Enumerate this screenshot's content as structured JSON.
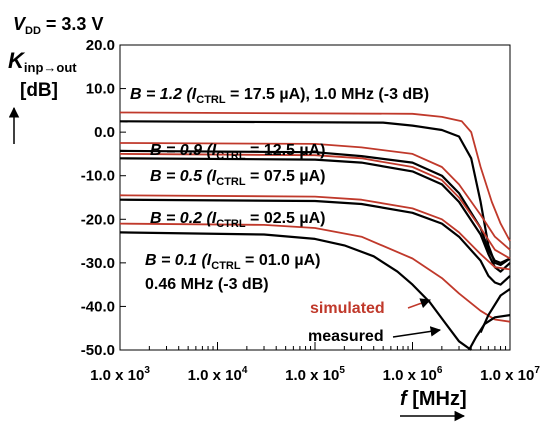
{
  "chart_data": {
    "type": "line",
    "title": "",
    "supply_label": {
      "sym": "V",
      "sub": "DD",
      "rest": " = 3.3 V"
    },
    "ylabel": {
      "sym": "K",
      "sub": "inp→out",
      "unit": "[dB]"
    },
    "xlabel": {
      "sym": "f",
      "unit": " [MHz]"
    },
    "x_scale": "log",
    "xlim": [
      1000,
      10000000
    ],
    "ylim": [
      -50,
      20
    ],
    "grid": false,
    "x_ticks": [
      {
        "value": 1000,
        "label": "1.0 x 10",
        "exp": "3"
      },
      {
        "value": 10000,
        "label": "1.0 x 10",
        "exp": "4"
      },
      {
        "value": 100000,
        "label": "1.0 x 10",
        "exp": "5"
      },
      {
        "value": 1000000,
        "label": "1.0 x 10",
        "exp": "6"
      },
      {
        "value": 10000000,
        "label": "1.0 x 10",
        "exp": "7"
      }
    ],
    "y_ticks": [
      {
        "value": 20,
        "label": "20.0"
      },
      {
        "value": 10,
        "label": "10.0"
      },
      {
        "value": 0,
        "label": "0.0"
      },
      {
        "value": -10,
        "label": "-10.0"
      },
      {
        "value": -20,
        "label": "-20.0"
      },
      {
        "value": -30,
        "label": "-30.0"
      },
      {
        "value": -40,
        "label": "-40.0"
      },
      {
        "value": -50,
        "label": "-50.0"
      }
    ],
    "series_colors": {
      "simulated": "#c0392b",
      "measured": "#000000"
    },
    "series": [
      {
        "kind": "simulated",
        "x": [
          1000,
          1000000,
          2000000,
          3200000,
          4000000,
          5000000,
          6500000,
          8000000,
          10000000
        ],
        "y": [
          4.5,
          4.2,
          3.5,
          2.5,
          0.0,
          -8.0,
          -16.0,
          -21.0,
          -25.0
        ]
      },
      {
        "kind": "measured",
        "x": [
          1000,
          500000,
          1000000,
          2000000,
          3000000,
          4000000,
          5000000,
          6000000,
          7000000,
          8000000,
          10000000
        ],
        "y": [
          2.5,
          2.2,
          1.5,
          0.5,
          -1.0,
          -6.0,
          -16.0,
          -26.0,
          -30.0,
          -30.5,
          -29.0
        ]
      },
      {
        "kind": "simulated",
        "x": [
          1000,
          100000,
          300000,
          1000000,
          2000000,
          3000000,
          5000000,
          7000000,
          10000000
        ],
        "y": [
          -2.5,
          -2.7,
          -3.5,
          -5.0,
          -8.0,
          -12.0,
          -19.0,
          -24.0,
          -27.0
        ]
      },
      {
        "kind": "measured",
        "x": [
          1000,
          100000,
          300000,
          1000000,
          2000000,
          3000000,
          5000000,
          6000000,
          7000000,
          8000000,
          10000000
        ],
        "y": [
          -4.3,
          -4.6,
          -5.5,
          -7.0,
          -10.0,
          -14.0,
          -22.0,
          -27.0,
          -29.5,
          -30.0,
          -29.0
        ]
      },
      {
        "kind": "simulated",
        "x": [
          1000,
          100000,
          300000,
          1000000,
          2000000,
          3000000,
          5000000,
          7000000,
          10000000
        ],
        "y": [
          -5.0,
          -5.3,
          -6.0,
          -8.0,
          -11.0,
          -15.0,
          -22.0,
          -27.0,
          -29.0
        ]
      },
      {
        "kind": "measured",
        "x": [
          1000,
          100000,
          300000,
          1000000,
          2000000,
          3000000,
          5000000,
          6000000,
          7000000,
          8000000,
          10000000
        ],
        "y": [
          -6.0,
          -6.3,
          -7.0,
          -9.0,
          -12.0,
          -16.0,
          -23.5,
          -28.0,
          -31.0,
          -32.0,
          -30.0
        ]
      },
      {
        "kind": "simulated",
        "x": [
          1000,
          100000,
          300000,
          1000000,
          2000000,
          3000000,
          5000000,
          7000000,
          10000000
        ],
        "y": [
          -14.5,
          -14.8,
          -15.5,
          -17.5,
          -20.0,
          -23.0,
          -28.0,
          -31.0,
          -31.5
        ]
      },
      {
        "kind": "measured",
        "x": [
          1000,
          100000,
          300000,
          1000000,
          2000000,
          3000000,
          5000000,
          6000000,
          7000000,
          8000000,
          10000000
        ],
        "y": [
          -15.5,
          -15.8,
          -16.5,
          -18.5,
          -21.0,
          -24.0,
          -29.5,
          -33.0,
          -34.5,
          -35.0,
          -33.0
        ]
      },
      {
        "kind": "simulated",
        "x": [
          1000,
          30000,
          100000,
          300000,
          1000000,
          2000000,
          3000000,
          5000000,
          7000000,
          10000000
        ],
        "y": [
          -21.0,
          -21.3,
          -22.0,
          -24.0,
          -29.0,
          -33.5,
          -37.0,
          -41.0,
          -43.0,
          -43.5
        ]
      },
      {
        "kind": "measured",
        "x": [
          1000,
          30000,
          100000,
          200000,
          400000,
          700000,
          1000000,
          1500000,
          2200000,
          3000000,
          4000000
        ],
        "y": [
          -23.0,
          -23.5,
          -24.5,
          -26.0,
          -28.5,
          -32.0,
          -35.0,
          -39.0,
          -44.0,
          -48.0,
          -51.0
        ]
      },
      {
        "kind": "measured",
        "x": [
          3800000,
          4500000,
          5500000,
          7000000,
          10000000
        ],
        "y": [
          -50.0,
          -47.0,
          -44.0,
          -42.5,
          -42.0
        ]
      },
      {
        "kind": "measured",
        "x": [
          5000000,
          6000000,
          8000000,
          10000000
        ],
        "y": [
          -46.0,
          -42.0,
          -37.5,
          -36.0
        ]
      }
    ],
    "annotations": [
      {
        "text": "B = 1.2 (I",
        "sub": "CTRL",
        "rest": " = 17.5 µA), 1.0 MHz (-3 dB)"
      },
      {
        "text": "B = 0.9 (I",
        "sub": "CTRL",
        "rest": " = 12.5 µA)"
      },
      {
        "text": "B = 0.5 (I",
        "sub": "CTRL",
        "rest": " = 07.5 µA)"
      },
      {
        "text": "B = 0.2 (I",
        "sub": "CTRL",
        "rest": " = 02.5 µA)"
      },
      {
        "text": "B = 0.1 (I",
        "sub": "CTRL",
        "rest": " = 01.0 µA)"
      },
      {
        "text": "0.46 MHz (-3 dB)"
      }
    ],
    "legend": {
      "simulated": "simulated",
      "measured": "measured"
    }
  }
}
